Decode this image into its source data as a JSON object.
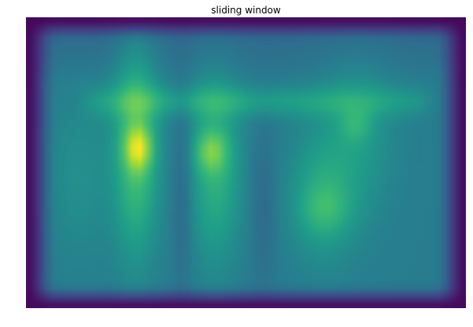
{
  "chart_data": {
    "type": "heatmap",
    "title": "sliding window",
    "xlabel": "",
    "ylabel": "",
    "colormap": "viridis",
    "axes_visible": false,
    "grid": false,
    "legend": "none",
    "colors": {
      "low": "#440154",
      "mid": "#21918c",
      "high": "#fde725"
    },
    "rows": 37,
    "cols": 56,
    "value_range": [
      0,
      1
    ]
  }
}
